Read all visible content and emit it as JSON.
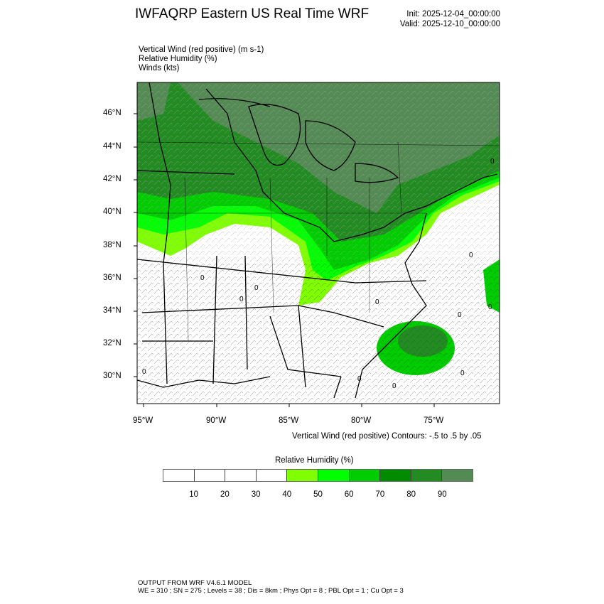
{
  "header": {
    "title": "IWFAQRP Eastern US Real Time WRF",
    "init": "Init: 2025-12-04_00:00:00",
    "valid": "Valid: 2025-12-10_00:00:00"
  },
  "fields": [
    "Vertical Wind (red positive)   (m s-1)",
    "Relative Humidity   (%)",
    "Winds   (kts)"
  ],
  "map": {
    "lat_ticks": [
      "46°N",
      "44°N",
      "42°N",
      "40°N",
      "38°N",
      "36°N",
      "34°N",
      "32°N",
      "30°N"
    ],
    "lon_ticks": [
      "95°W",
      "90°W",
      "85°W",
      "80°W",
      "75°W"
    ],
    "contour_labels": [
      "0",
      "0",
      "0",
      "0",
      "0",
      "0",
      "0",
      "0",
      "0",
      "0",
      "0",
      "0"
    ]
  },
  "contour_info": "Vertical Wind (red positive) Contours: -.5 to .5 by .05",
  "colorbar": {
    "title": "Relative Humidity  (%)",
    "labels": [
      "10",
      "20",
      "30",
      "40",
      "50",
      "60",
      "70",
      "80",
      "90"
    ],
    "colors": [
      "#ffffff",
      "#ffffff",
      "#ffffff",
      "#ffffff",
      "#80ff00",
      "#00ff00",
      "#00cd00",
      "#008b00",
      "#228b22",
      "#548b54"
    ]
  },
  "footer": {
    "line1": "OUTPUT FROM WRF V4.6.1 MODEL",
    "line2": "WE = 310 ; SN = 275 ; Levels = 38 ; Dis = 8km ; Phys Opt = 8 ; PBL Opt = 1 ; Cu Opt = 3"
  }
}
